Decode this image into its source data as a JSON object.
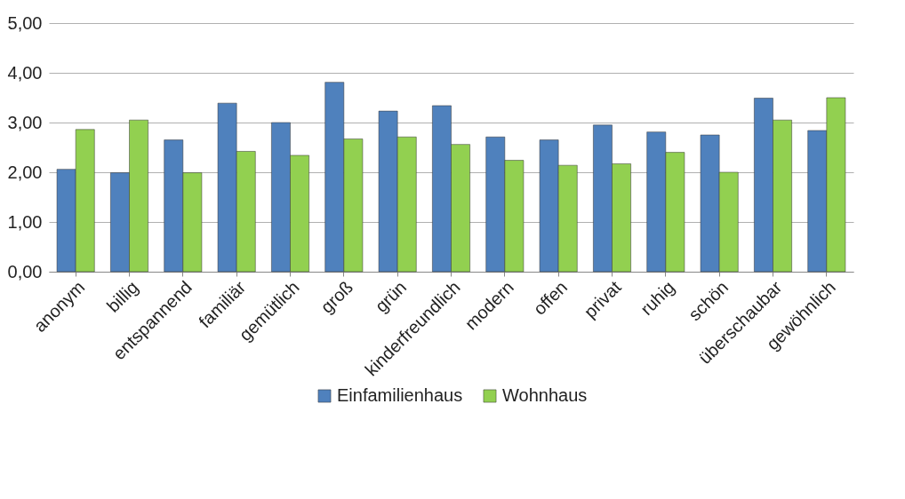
{
  "chart_data": {
    "type": "bar",
    "categories": [
      "anonym",
      "billig",
      "entspannend",
      "familiär",
      "gemütlich",
      "groß",
      "grün",
      "kinderfreundlich",
      "modern",
      "offen",
      "privat",
      "ruhig",
      "schön",
      "überschaubar",
      "gewöhnlich"
    ],
    "series": [
      {
        "name": "Einfamilienhaus",
        "color": "#4f81bd",
        "values": [
          2.06,
          1.99,
          2.65,
          3.39,
          3.0,
          3.81,
          3.23,
          3.34,
          2.71,
          2.65,
          2.95,
          2.81,
          2.75,
          3.49,
          2.84
        ]
      },
      {
        "name": "Wohnhaus",
        "color": "#92d050",
        "values": [
          2.86,
          3.05,
          1.99,
          2.42,
          2.34,
          2.67,
          2.71,
          2.56,
          2.24,
          2.14,
          2.17,
          2.4,
          2.0,
          3.05,
          3.5
        ]
      }
    ],
    "ylim": [
      0,
      5
    ],
    "yticks": [
      {
        "value": 0,
        "label": "0,00"
      },
      {
        "value": 1,
        "label": "1,00"
      },
      {
        "value": 2,
        "label": "2,00"
      },
      {
        "value": 3,
        "label": "3,00"
      },
      {
        "value": 4,
        "label": "4,00"
      },
      {
        "value": 5,
        "label": "5,00"
      }
    ],
    "grid": "y",
    "legend": "bottom"
  }
}
